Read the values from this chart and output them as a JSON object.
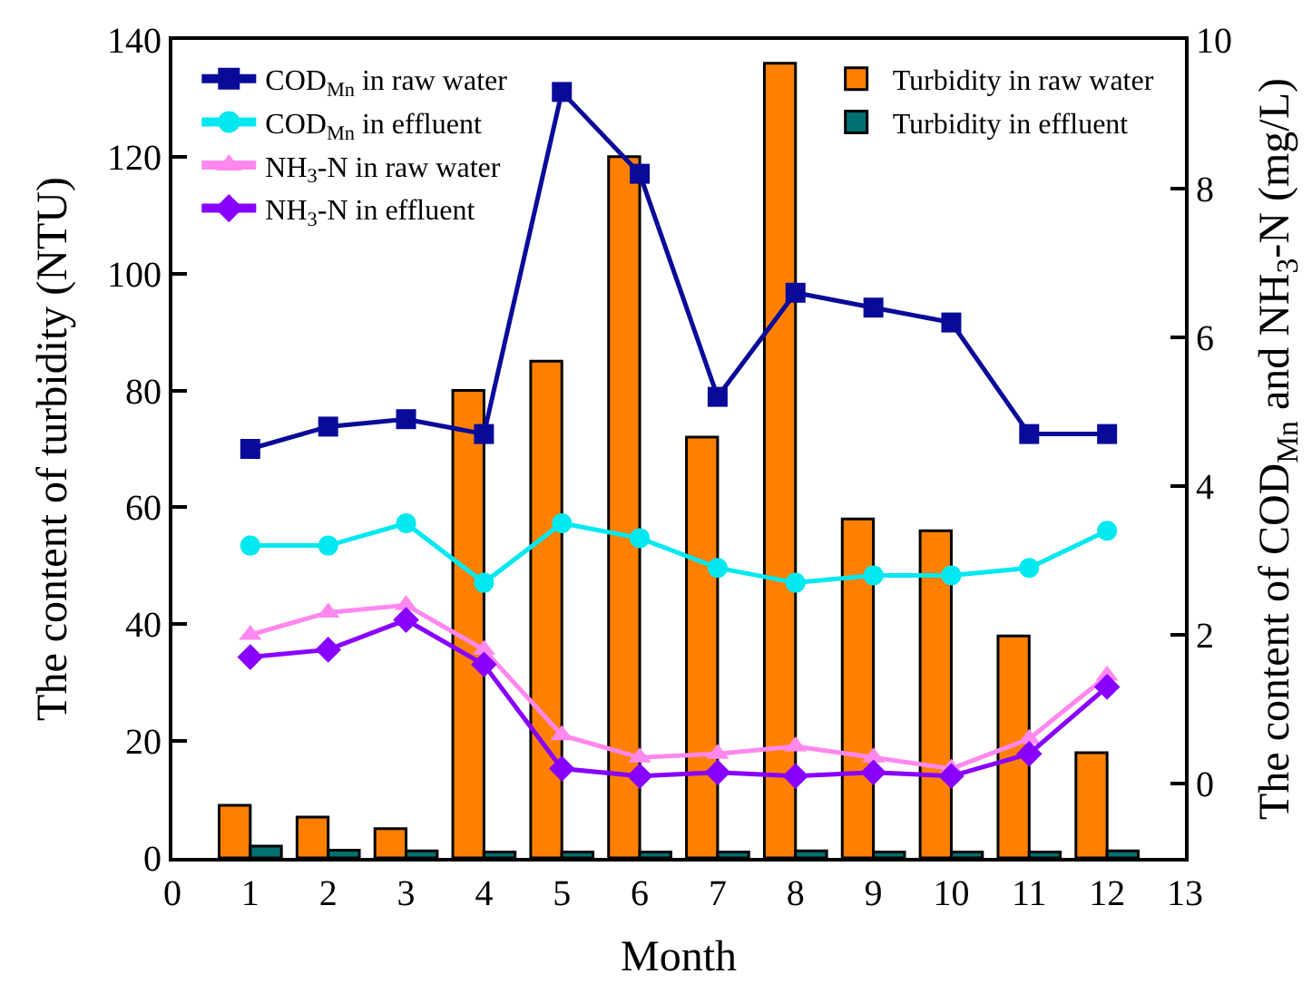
{
  "chart_data": {
    "type": "bar",
    "x": [
      1,
      2,
      3,
      4,
      5,
      6,
      7,
      8,
      9,
      10,
      11,
      12
    ],
    "xlabel": "Month",
    "ylabel": "The content of turbidity (NTU)",
    "y2label": "The content of COD$_{Mn}$ and NH$_{3}$-N (mg/L)",
    "xlim": [
      0,
      13
    ],
    "xticks": [
      0,
      1,
      2,
      3,
      4,
      5,
      6,
      7,
      8,
      9,
      10,
      11,
      12,
      13
    ],
    "ylim": [
      0,
      140
    ],
    "yticks": [
      0,
      20,
      40,
      60,
      80,
      100,
      120,
      140
    ],
    "y2lim": [
      -1,
      10
    ],
    "y2ticks": [
      0,
      2,
      4,
      6,
      8,
      10
    ],
    "legend": "top left",
    "series": [
      {
        "name": "COD$_{Mn}$ in raw water",
        "type": "line",
        "axis": "y2",
        "marker": "square",
        "color": "#0a0a9a",
        "values": [
          4.5,
          4.8,
          4.9,
          4.7,
          9.3,
          8.2,
          5.2,
          6.6,
          6.4,
          6.2,
          4.7,
          4.7
        ]
      },
      {
        "name": "COD$_{Mn}$ in effluent",
        "type": "line",
        "axis": "y2",
        "marker": "circle",
        "color": "#00e8f0",
        "values": [
          3.2,
          3.2,
          3.5,
          2.7,
          3.5,
          3.3,
          2.9,
          2.7,
          2.8,
          2.8,
          2.9,
          3.4
        ]
      },
      {
        "name": "NH$_{3}$-N in raw water",
        "type": "line",
        "axis": "y2",
        "marker": "triangle",
        "color": "#ff88ee",
        "values": [
          2.0,
          2.3,
          2.4,
          1.8,
          0.65,
          0.35,
          0.4,
          0.5,
          0.35,
          0.2,
          0.6,
          1.45
        ]
      },
      {
        "name": "NH$_{3}$-N in effluent",
        "type": "line",
        "axis": "y2",
        "marker": "diamond",
        "color": "#8800ff",
        "values": [
          1.7,
          1.8,
          2.2,
          1.6,
          0.2,
          0.1,
          0.15,
          0.1,
          0.15,
          0.1,
          0.4,
          1.3
        ]
      },
      {
        "name": "Turbidity in raw water",
        "color": "#ff8000",
        "values": [
          9,
          7,
          5,
          80,
          85,
          120,
          72,
          136,
          58,
          56,
          38,
          18
        ]
      },
      {
        "name": "Turbidity in effluent",
        "color": "#007070",
        "values": [
          2,
          1.3,
          1.2,
          1,
          1,
          1,
          1,
          1.2,
          1,
          1,
          1,
          1.2
        ]
      }
    ]
  }
}
